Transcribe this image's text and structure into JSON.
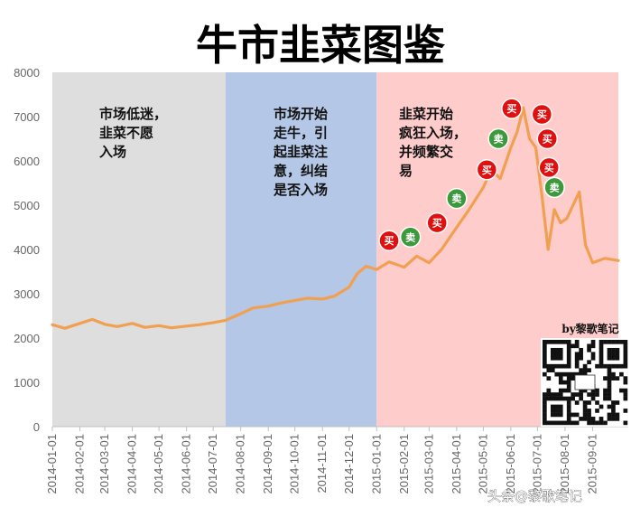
{
  "chart_data": {
    "type": "line",
    "title": "牛市韭菜图鉴",
    "ylim": [
      0,
      8000
    ],
    "y_ticks": [
      "0",
      "1000",
      "2000",
      "3000",
      "4000",
      "5000",
      "6000",
      "7000",
      "8000"
    ],
    "x_ticks": [
      "2014-01-01",
      "2014-02-01",
      "2014-03-01",
      "2014-04-01",
      "2014-05-01",
      "2014-06-01",
      "2014-07-01",
      "2014-08-01",
      "2014-09-01",
      "2014-10-01",
      "2014-11-01",
      "2014-12-01",
      "2015-01-01",
      "2015-02-01",
      "2015-03-01",
      "2015-04-01",
      "2015-05-01",
      "2015-06-01",
      "2015-07-01",
      "2015-08-01",
      "2015-09-01"
    ],
    "grid": false,
    "line_color": "#f0a050",
    "series": [
      {
        "x": [
          "2014-01-01",
          "2014-01-15",
          "2014-02-01",
          "2014-02-15",
          "2014-03-01",
          "2014-03-15",
          "2014-04-01",
          "2014-04-15",
          "2014-05-01",
          "2014-05-15",
          "2014-06-01",
          "2014-06-15",
          "2014-07-01",
          "2014-07-15",
          "2014-08-01",
          "2014-08-15",
          "2014-09-01",
          "2014-09-15",
          "2014-10-01",
          "2014-10-15",
          "2014-11-01",
          "2014-11-15",
          "2014-12-01",
          "2014-12-10",
          "2014-12-20",
          "2015-01-01",
          "2015-01-15",
          "2015-02-01",
          "2015-02-15",
          "2015-03-01",
          "2015-03-15",
          "2015-04-01",
          "2015-04-15",
          "2015-05-01",
          "2015-05-10",
          "2015-05-20",
          "2015-06-01",
          "2015-06-08",
          "2015-06-15",
          "2015-06-22",
          "2015-06-29",
          "2015-07-06",
          "2015-07-13",
          "2015-07-20",
          "2015-07-27",
          "2015-08-03",
          "2015-08-10",
          "2015-08-17",
          "2015-08-24",
          "2015-09-01",
          "2015-09-15",
          "2015-09-30"
        ],
        "values": [
          2300,
          2220,
          2330,
          2420,
          2310,
          2260,
          2330,
          2240,
          2280,
          2230,
          2270,
          2300,
          2350,
          2400,
          2550,
          2680,
          2720,
          2790,
          2850,
          2900,
          2880,
          2950,
          3150,
          3450,
          3620,
          3550,
          3720,
          3600,
          3850,
          3700,
          4000,
          4500,
          4900,
          5400,
          5800,
          5600,
          6300,
          6650,
          7200,
          6500,
          6300,
          5200,
          4000,
          4900,
          4600,
          4700,
          5000,
          5300,
          4100,
          3700,
          3800,
          3750
        ]
      }
    ],
    "zones": [
      {
        "x_start": "2014-01-01",
        "x_end": "2014-07-15",
        "color": "#dedede",
        "text_lines": [
          "市场低迷，",
          "韭菜不愿",
          "入场"
        ]
      },
      {
        "x_start": "2014-07-15",
        "x_end": "2015-01-01",
        "color": "#b4c7e7",
        "text_lines": [
          "市场开始",
          "走牛，引",
          "起韭菜注",
          "意，纠结",
          "是否入场"
        ]
      },
      {
        "x_start": "2015-01-01",
        "x_end": "2015-09-30",
        "color": "#ffcccc",
        "text_lines": [
          "韭菜开始",
          "疯狂入场，",
          "并频繁交",
          "易"
        ]
      }
    ],
    "annotations": [
      {
        "label": "买",
        "color": "#e01010",
        "x": "2015-01-15",
        "y": 4200
      },
      {
        "label": "卖",
        "color": "#3c9a3c",
        "x": "2015-02-08",
        "y": 4280
      },
      {
        "label": "买",
        "color": "#e01010",
        "x": "2015-03-10",
        "y": 4600
      },
      {
        "label": "卖",
        "color": "#3c9a3c",
        "x": "2015-04-01",
        "y": 5150
      },
      {
        "label": "买",
        "color": "#e01010",
        "x": "2015-05-05",
        "y": 5800
      },
      {
        "label": "卖",
        "color": "#3c9a3c",
        "x": "2015-05-18",
        "y": 6500
      },
      {
        "label": "买",
        "color": "#e01010",
        "x": "2015-06-02",
        "y": 7180
      },
      {
        "label": "买",
        "color": "#e01010",
        "x": "2015-07-06",
        "y": 7050
      },
      {
        "label": "买",
        "color": "#e01010",
        "x": "2015-07-12",
        "y": 6500
      },
      {
        "label": "买",
        "color": "#e01010",
        "x": "2015-07-14",
        "y": 5850
      },
      {
        "label": "卖",
        "color": "#3c9a3c",
        "x": "2015-07-20",
        "y": 5400
      }
    ],
    "credit": "by黎歌笔记",
    "watermark": "头条@黎歌笔记"
  }
}
